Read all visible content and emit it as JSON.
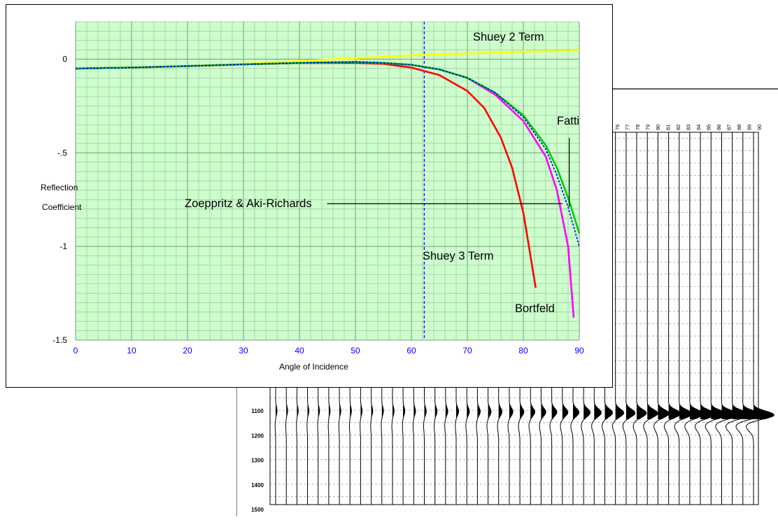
{
  "chart_data": {
    "type": "line",
    "title": "",
    "xlabel": "Angle of Incidence",
    "ylabel": [
      "Reflection",
      "Coefficient"
    ],
    "xlim": [
      0,
      90
    ],
    "ylim": [
      -1.5,
      0.2
    ],
    "xticks": [
      "0",
      "10",
      "20",
      "30",
      "40",
      "50",
      "60",
      "70",
      "80",
      "90"
    ],
    "yticks": [
      {
        "value": 0,
        "label": "0"
      },
      {
        "value": -0.5,
        "label": "-.5"
      },
      {
        "value": -1,
        "label": "-1"
      },
      {
        "value": -1.5,
        "label": "-1.5"
      }
    ],
    "grid": true,
    "critical_angle": 62.3,
    "series": [
      {
        "name": "Shuey 2 Term",
        "color": "#ffff00",
        "x": [
          0,
          10,
          20,
          30,
          40,
          50,
          60,
          70,
          80,
          90
        ],
        "y": [
          -0.05,
          -0.045,
          -0.037,
          -0.025,
          -0.01,
          0.005,
          0.02,
          0.03,
          0.04,
          0.045
        ]
      },
      {
        "name": "Shuey 3 Term",
        "color": "#ff0000",
        "x": [
          0,
          10,
          20,
          30,
          40,
          50,
          55,
          60,
          65,
          70,
          73,
          76,
          78,
          80,
          81,
          82.2
        ],
        "y": [
          -0.05,
          -0.045,
          -0.037,
          -0.028,
          -0.021,
          -0.02,
          -0.025,
          -0.045,
          -0.085,
          -0.17,
          -0.26,
          -0.42,
          -0.58,
          -0.82,
          -1.0,
          -1.22
        ]
      },
      {
        "name": "Bortfeld",
        "color": "#ff00ff",
        "x": [
          0,
          10,
          20,
          30,
          40,
          50,
          55,
          60,
          65,
          70,
          75,
          80,
          84,
          86,
          88,
          89
        ],
        "y": [
          -0.05,
          -0.045,
          -0.037,
          -0.028,
          -0.02,
          -0.015,
          -0.02,
          -0.03,
          -0.055,
          -0.1,
          -0.19,
          -0.33,
          -0.52,
          -0.7,
          -1.0,
          -1.38
        ]
      },
      {
        "name": "Fatti",
        "color": "#00cc00",
        "x": [
          0,
          10,
          20,
          30,
          40,
          50,
          55,
          60,
          65,
          70,
          75,
          80,
          84,
          86,
          88,
          90
        ],
        "y": [
          -0.05,
          -0.045,
          -0.037,
          -0.028,
          -0.02,
          -0.015,
          -0.02,
          -0.03,
          -0.055,
          -0.1,
          -0.18,
          -0.3,
          -0.46,
          -0.58,
          -0.74,
          -0.93
        ]
      },
      {
        "name": "Zoeppritz & Aki-Richards",
        "color": "#0000ff",
        "dashed": true,
        "x": [
          0,
          10,
          20,
          30,
          40,
          50,
          55,
          60,
          65,
          70,
          75,
          80,
          84,
          86,
          88,
          90
        ],
        "y": [
          -0.05,
          -0.045,
          -0.037,
          -0.028,
          -0.02,
          -0.015,
          -0.02,
          -0.03,
          -0.055,
          -0.1,
          -0.18,
          -0.31,
          -0.48,
          -0.62,
          -0.79,
          -1.0
        ]
      }
    ],
    "annotations": [
      {
        "text": "Shuey 2 Term",
        "x": 71,
        "y": 0.1
      },
      {
        "text": "Fatti",
        "x": 86,
        "y": -0.35
      },
      {
        "text": "Zoeppritz & Aki-Richards",
        "x": 19.5,
        "y": -0.79,
        "line_to_x": 87
      },
      {
        "text": "Shuey 3 Term",
        "x": 62,
        "y": -1.07
      },
      {
        "text": "Bortfeld",
        "x": 78.5,
        "y": -1.35
      }
    ]
  },
  "seismic": {
    "trace_labels": [
      "76",
      "77",
      "78",
      "79",
      "80",
      "81",
      "82",
      "83",
      "84",
      "85",
      "86",
      "87",
      "88",
      "89",
      "90"
    ],
    "time_labels": [
      "1100",
      "1200",
      "1300",
      "1400",
      "1500"
    ]
  }
}
